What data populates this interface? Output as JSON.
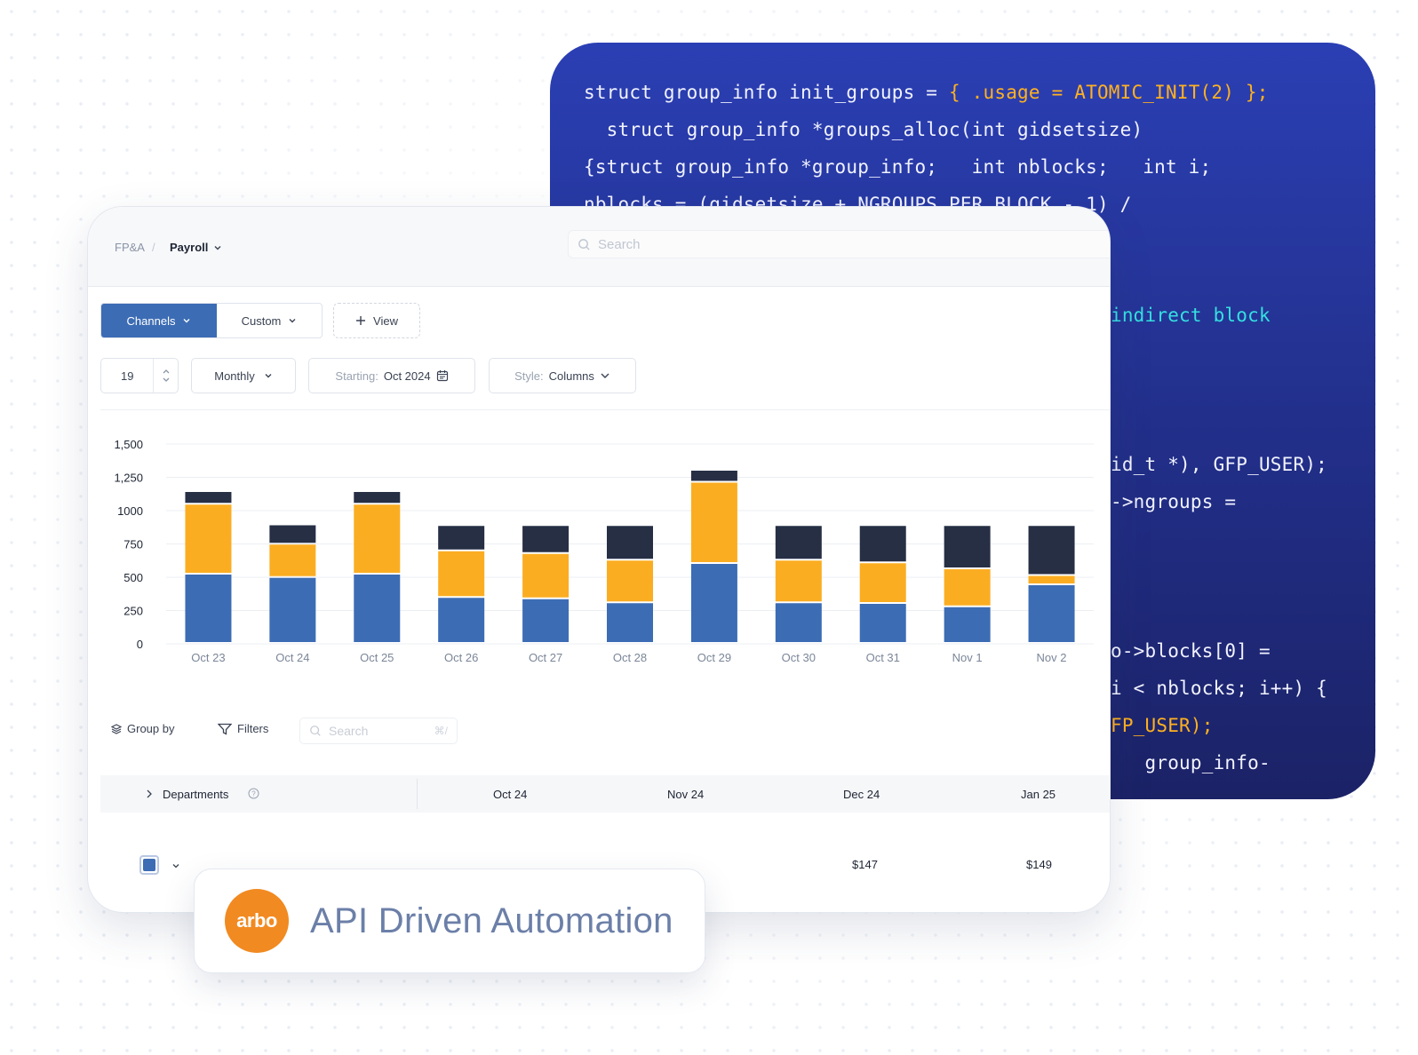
{
  "code": {
    "lines": [
      {
        "pre": "struct group_info init_groups = ",
        "hl": "{ .usage = ATOMIC_INIT(2) };",
        "hl_class": "orange"
      },
      {
        "pre": "  struct group_info *groups_alloc(int gidsetsize)",
        "hl": "",
        "hl_class": ""
      },
      {
        "pre": "{struct group_info *group_info;   int nblocks;   int i;",
        "hl": "",
        "hl_class": ""
      },
      {
        "pre": "nblocks = (gidsetsize + NGROUPS_PER_BLOCK - 1) /",
        "hl": "",
        "hl_class": ""
      },
      {
        "pre": "",
        "hl": "indirect block",
        "hl_class": "cyan"
      },
      {
        "pre": "id_t *), GFP_USER);",
        "hl": "",
        "hl_class": ""
      },
      {
        "pre": "->ngroups =",
        "hl": "",
        "hl_class": ""
      },
      {
        "pre": "o->blocks[0] =",
        "hl": "",
        "hl_class": ""
      },
      {
        "pre": "i < nblocks; i++) {",
        "hl": "",
        "hl_class": ""
      },
      {
        "pre": "",
        "hl": "FP_USER);",
        "hl_class": "orange"
      },
      {
        "pre": "   group_info-",
        "hl": "",
        "hl_class": ""
      }
    ]
  },
  "breadcrumb": {
    "root": "FP&A",
    "separator": "/",
    "current": "Payroll"
  },
  "search": {
    "placeholder": "Search"
  },
  "tabs": {
    "channels": "Channels",
    "custom": "Custom",
    "view": "View"
  },
  "controls": {
    "count": "19",
    "period": "Monthly",
    "starting_label": "Starting:",
    "starting_value": "Oct 2024",
    "style_label": "Style:",
    "style_value": "Columns"
  },
  "colors": {
    "blue": "#3c6cb4",
    "orange": "#fbad22",
    "navy": "#262f44",
    "accent": "#f18a21"
  },
  "chart_data": {
    "type": "bar",
    "stacked": true,
    "categories": [
      "Oct 23",
      "Oct 24",
      "Oct 25",
      "Oct 26",
      "Oct 27",
      "Oct 28",
      "Oct 29",
      "Oct 30",
      "Oct 31",
      "Nov 1",
      "Nov 2"
    ],
    "series": [
      {
        "color": "#3c6cb4",
        "values": [
          520,
          495,
          520,
          345,
          335,
          305,
          600,
          305,
          300,
          275,
          440
        ]
      },
      {
        "color": "#fbad22",
        "values": [
          525,
          250,
          525,
          350,
          340,
          320,
          610,
          320,
          305,
          285,
          70
        ]
      },
      {
        "color": "#262f44",
        "values": [
          95,
          145,
          95,
          190,
          210,
          260,
          90,
          260,
          280,
          325,
          375
        ]
      }
    ],
    "yticks": [
      "0",
      "250",
      "500",
      "750",
      "1000",
      "1,250",
      "1,500"
    ],
    "ylim": [
      0,
      1500
    ],
    "grid": true
  },
  "table": {
    "group_by": "Group by",
    "filters": "Filters",
    "search_placeholder": "Search",
    "search_shortcut": "⌘/",
    "header_first": "Departments",
    "columns": [
      "Oct 24",
      "Nov 24",
      "Dec 24",
      "Jan 25"
    ],
    "row_values": [
      "$147",
      "$149"
    ]
  },
  "badge": {
    "logo_text": "arbo",
    "title": "API Driven Automation"
  }
}
